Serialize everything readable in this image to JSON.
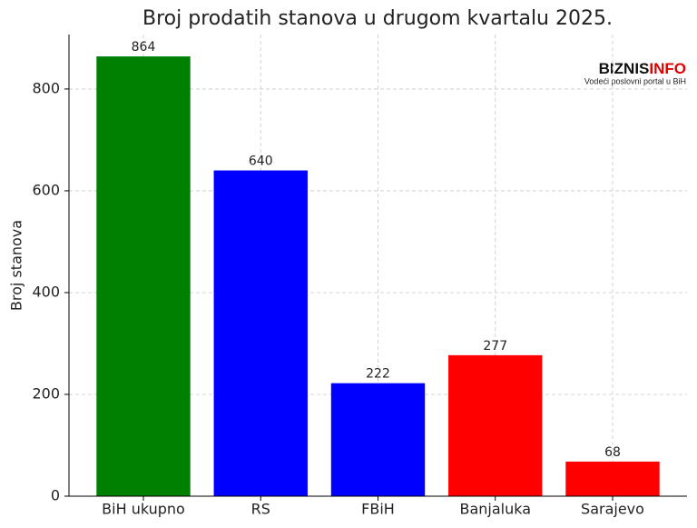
{
  "chart_data": {
    "type": "bar",
    "title": "Broj prodatih stanova u drugom kvartalu 2025.",
    "ylabel": "Broj stanova",
    "categories": [
      "BiH ukupno",
      "RS",
      "FBiH",
      "Banjaluka",
      "Sarajevo"
    ],
    "values": [
      864,
      640,
      222,
      277,
      68
    ],
    "colors": [
      "#008000",
      "#0000ff",
      "#0000ff",
      "#ff0000",
      "#ff0000"
    ],
    "ylim": [
      0,
      907
    ],
    "yticks": [
      0,
      200,
      400,
      600,
      800
    ],
    "grid": true,
    "logo": {
      "parts": [
        "BIZNIS",
        "INFO"
      ],
      "tagline": "Vodeći poslovni portal u BiH"
    }
  }
}
